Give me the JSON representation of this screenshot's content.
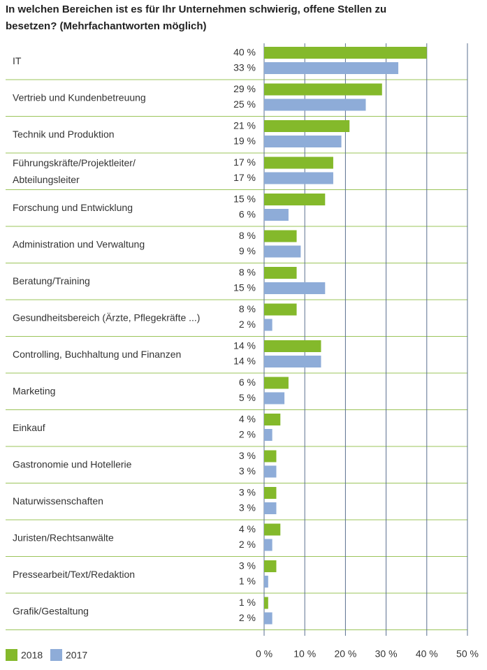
{
  "chart_data": {
    "type": "barh",
    "title": "In welchen Bereichen ist es für Ihr Unternehmen schwierig, offene Stellen zu\nbesetzen? (Mehrfachantworten möglich)",
    "categories": [
      "IT",
      "Vertrieb und Kundenbetreuung",
      "Technik und Produktion",
      "Führungskräfte/Projektleiter/\nAbteilungsleiter",
      "Forschung und Entwicklung",
      "Administration und Verwaltung",
      "Beratung/Training",
      "Gesundheitsbereich (Ärzte, Pflegekräfte ...)",
      "Controlling, Buchhaltung und Finanzen",
      "Marketing",
      "Einkauf",
      "Gastronomie und Hotellerie",
      "Naturwissenschaften",
      "Juristen/Rechtsanwälte",
      "Pressearbeit/Text/Redaktion",
      "Grafik/Gestaltung"
    ],
    "series": [
      {
        "name": "2018",
        "color": "#84b92b",
        "values": [
          40,
          29,
          21,
          17,
          15,
          8,
          8,
          8,
          14,
          6,
          4,
          3,
          3,
          4,
          3,
          1
        ],
        "value_labels": [
          "40 %",
          "29 %",
          "21 %",
          "17 %",
          "15 %",
          "8 %",
          "8 %",
          "8 %",
          "14 %",
          "6 %",
          "4 %",
          "3 %",
          "3 %",
          "4 %",
          "3 %",
          "1 %"
        ]
      },
      {
        "name": "2017",
        "color": "#8eacd8",
        "values": [
          33,
          25,
          19,
          17,
          6,
          9,
          15,
          2,
          14,
          5,
          2,
          3,
          3,
          2,
          1,
          2
        ],
        "value_labels": [
          "33 %",
          "25 %",
          "19 %",
          "17 %",
          "6 %",
          "9 %",
          "15 %",
          "2 %",
          "14 %",
          "5 %",
          "2 %",
          "3 %",
          "3 %",
          "2 %",
          "1 %",
          "2 %"
        ]
      }
    ],
    "xlim": [
      0,
      50
    ],
    "xticks": [
      {
        "value": 0,
        "label": "0 %"
      },
      {
        "value": 10,
        "label": "10 %"
      },
      {
        "value": 20,
        "label": "20 %"
      },
      {
        "value": 30,
        "label": "30 %"
      },
      {
        "value": 40,
        "label": "40 %"
      },
      {
        "value": 50,
        "label": "50 %"
      }
    ],
    "grid": true
  }
}
